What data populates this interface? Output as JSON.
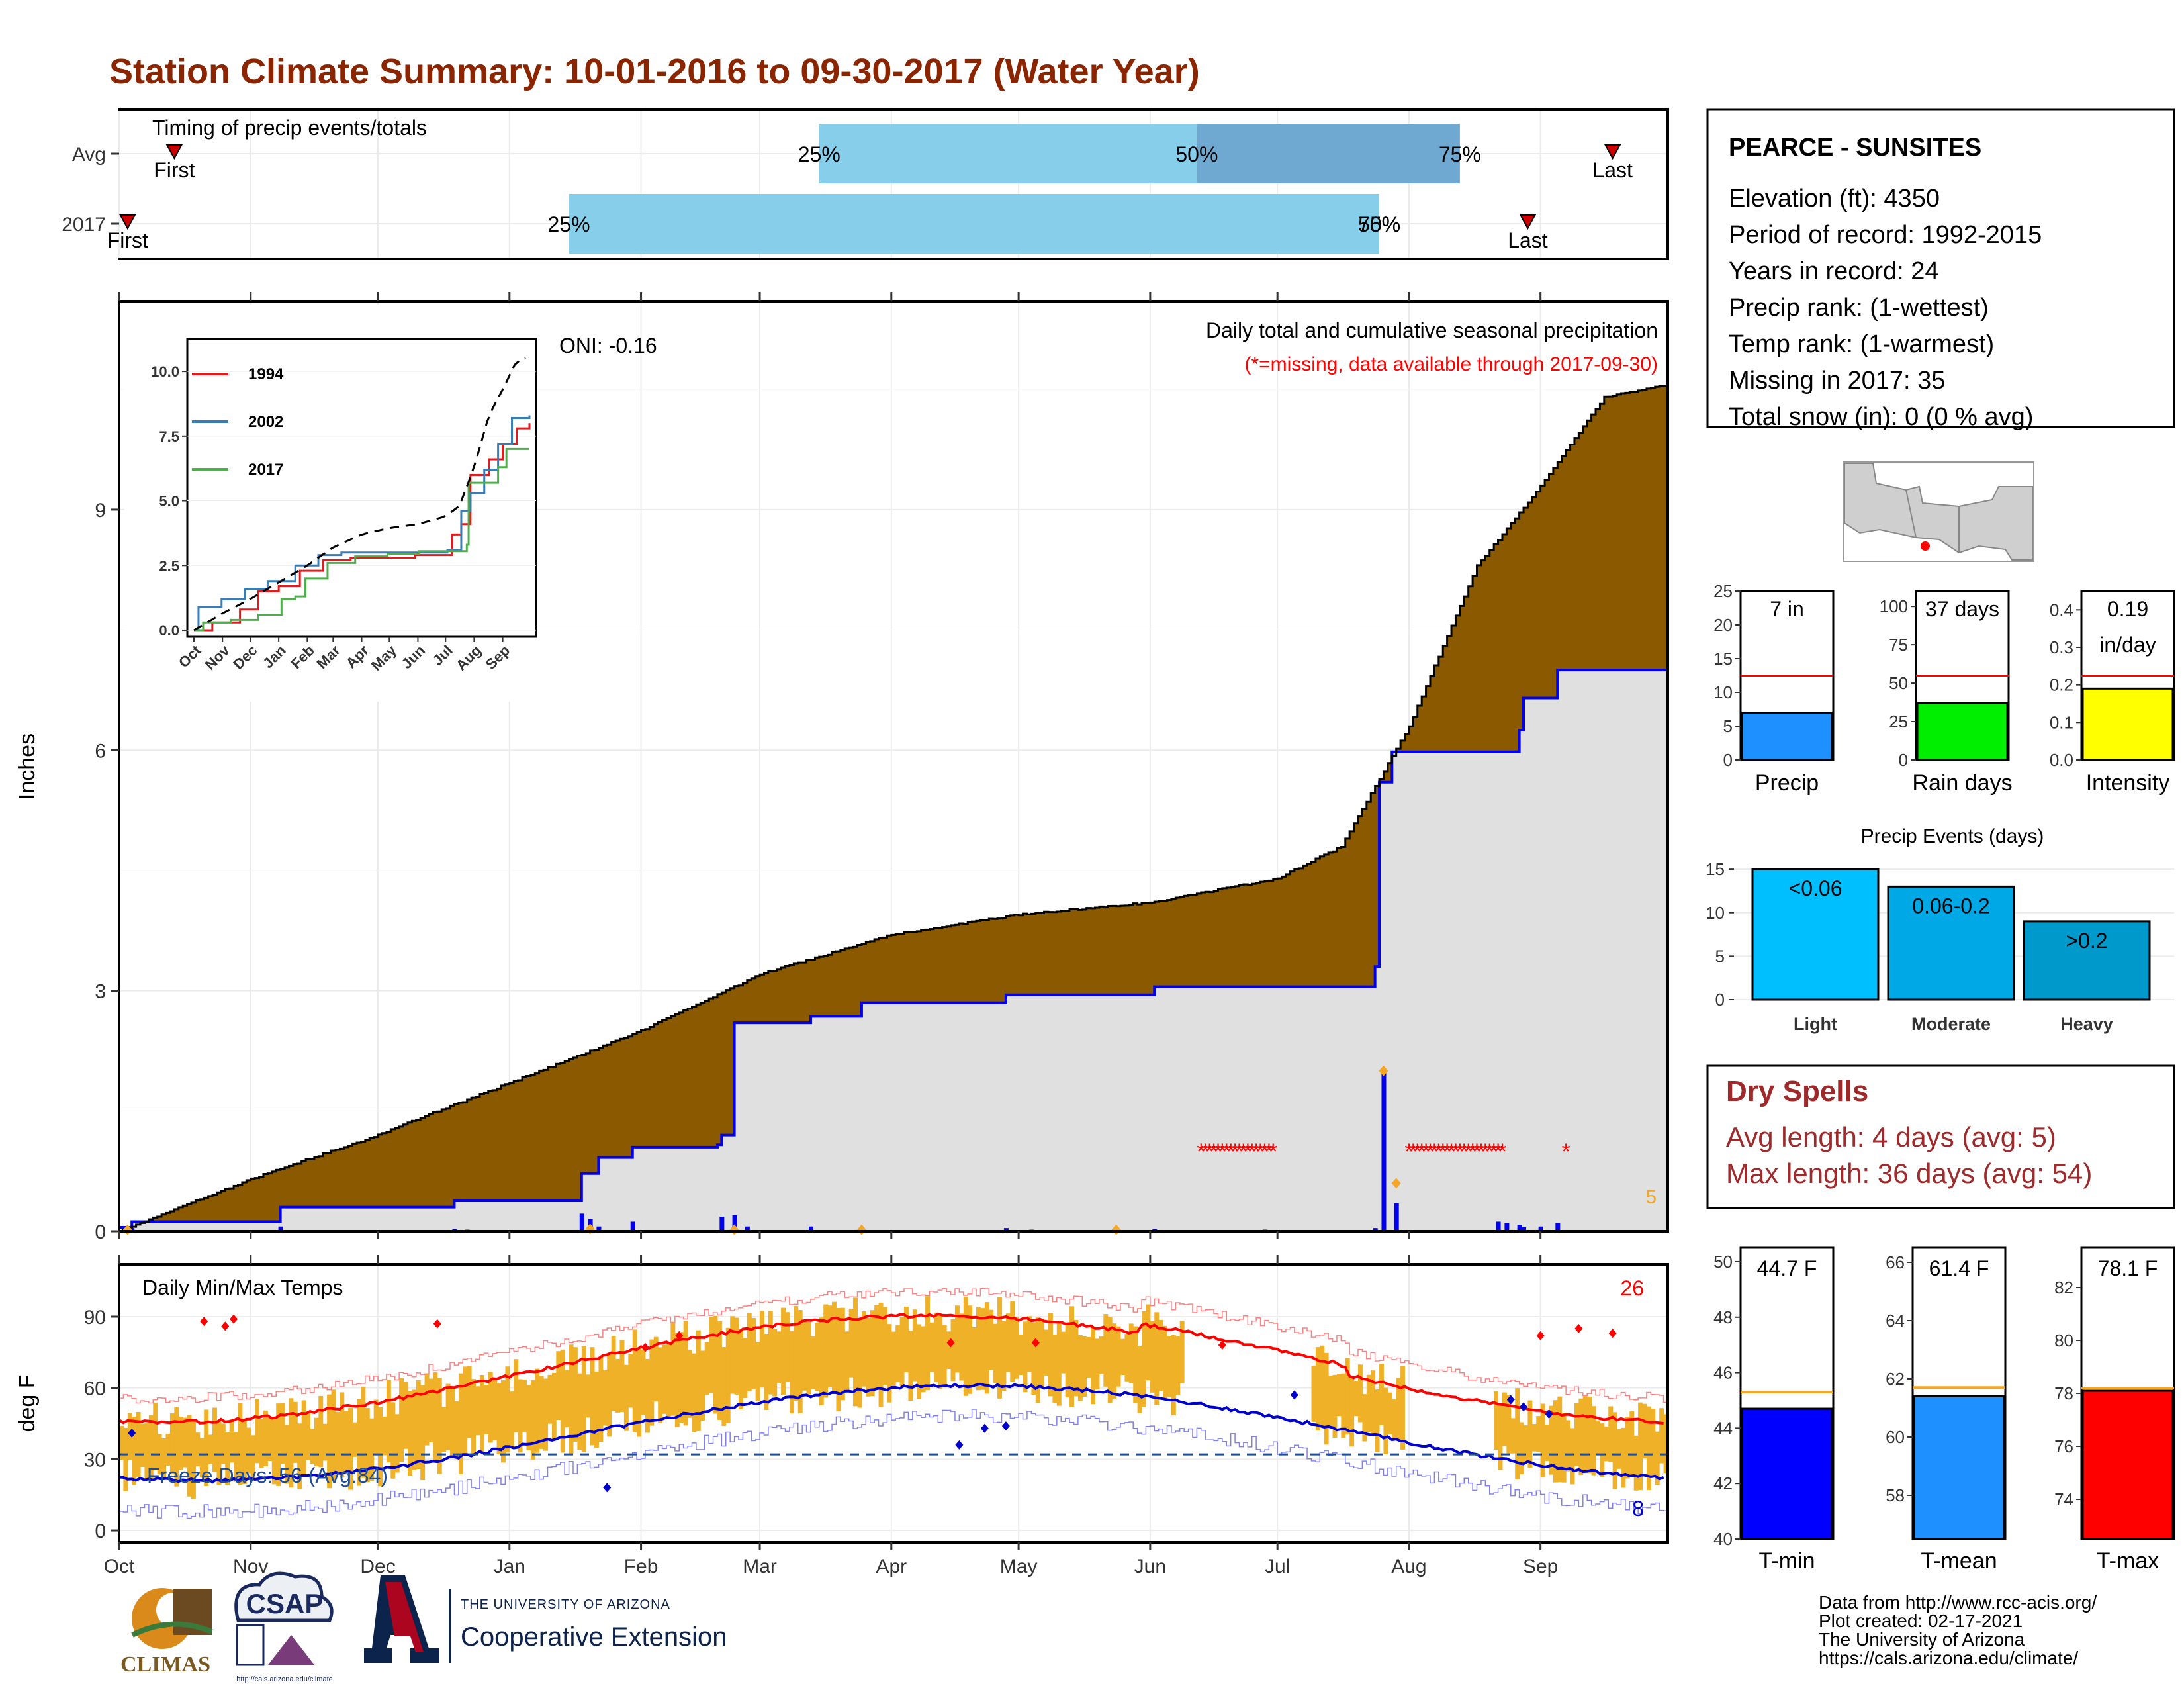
{
  "title": "Station Climate Summary: 10-01-2016 to 09-30-2017 (Water Year)",
  "colors": {
    "title": "#8B2500",
    "cumulative_avg_fill": "#8B5A00",
    "observed_fill": "#e0e0e0",
    "observed_line": "#0000ee",
    "precip_bar": "#0000ee",
    "temp_bar": "#efb127",
    "tmax_line": "#ff0000",
    "tmin_line": "#0000cc",
    "freeze_line": "#1f4e99",
    "bar_precip": "#1e90ff",
    "bar_raindays": "#00ee00",
    "bar_intensity": "#ffff00",
    "avg_line": "#ff0000",
    "tmin_bar": "#0000ff",
    "tmean_bar": "#1e90ff",
    "tmax_bar": "#ff0000",
    "temp_avg_line": "#f5a623",
    "event_light": "#00bfff",
    "event_moderate": "#00a8e6",
    "event_heavy": "#0099cc",
    "dry_spell": "#9e2a2b"
  },
  "timing": {
    "label": "Timing of precip events/totals",
    "rows": [
      {
        "name": "Avg",
        "first_label": "First",
        "last_label": "Last",
        "p25_label": "25%",
        "p50_label": "50%",
        "p75_label": "75%",
        "first_day": 13,
        "last_day": 352,
        "p25_day": 165,
        "p50_day": 254,
        "p75_day": 316
      },
      {
        "name": "2017",
        "first_label": "First",
        "last_label": "Last",
        "p25_label": "25%",
        "p50_label": "50%",
        "p75_label": "75%",
        "first_day": 2,
        "last_day": 332,
        "p25_day": 106,
        "p50_day": 297,
        "p75_day": 297
      }
    ]
  },
  "precip_panel": {
    "ylabel": "Inches",
    "yticks": [
      "0",
      "3",
      "6",
      "9"
    ],
    "ymax": 11.6,
    "caption": "Daily total and cumulative seasonal precipitation",
    "missing_note": "(*=missing, data available through 2017-09-30)",
    "oni": "ONI: -0.16",
    "corner_value": "5",
    "peak_value": "2.0"
  },
  "inset": {
    "yticks": [
      "0.0",
      "2.5",
      "5.0",
      "7.5",
      "10.0"
    ],
    "xticks": [
      "Oct",
      "Nov",
      "Dec",
      "Jan",
      "Feb",
      "Mar",
      "Apr",
      "May",
      "Jun",
      "Jul",
      "Aug",
      "Sep"
    ],
    "legend": [
      {
        "name": "1994",
        "color": "#e41a1c"
      },
      {
        "name": "2002",
        "color": "#377eb8"
      },
      {
        "name": "2017",
        "color": "#4daf4a"
      }
    ]
  },
  "temp_panel": {
    "ylabel": "deg F",
    "label": "Daily Min/Max Temps",
    "yticks": [
      "0",
      "30",
      "60",
      "90"
    ],
    "freeze_label": "Freeze Days: 56 (Avg:84)",
    "tmax_record_count": "26",
    "tmin_record_count": "8"
  },
  "months": [
    "Oct",
    "Nov",
    "Dec",
    "Jan",
    "Feb",
    "Mar",
    "Apr",
    "May",
    "Jun",
    "Jul",
    "Aug",
    "Sep"
  ],
  "station": {
    "name": "PEARCE - SUNSITES",
    "elevation": "Elevation (ft): 4350",
    "period": "Period of record: 1992-2015",
    "years": "Years in record: 24",
    "precip_rank": "Precip rank:  (1-wettest)",
    "temp_rank": "Temp rank:  (1-warmest)",
    "missing": "Missing in 2017: 35",
    "snow": "Total snow (in): 0 (0 % avg)"
  },
  "summary_bars": [
    {
      "key": "precip",
      "label": "Precip",
      "value_text": "7 in",
      "value_text2": "",
      "value": 7,
      "avg": 12.5,
      "ymax": 25,
      "yticks": [
        "0",
        "5",
        "10",
        "15",
        "20",
        "25"
      ]
    },
    {
      "key": "raindays",
      "label": "Rain days",
      "value_text": "37 days",
      "value_text2": "",
      "value": 37,
      "avg": 55,
      "ymax": 110,
      "yticks": [
        "0",
        "25",
        "50",
        "75",
        "100"
      ]
    },
    {
      "key": "intensity",
      "label": "Intensity",
      "value_text": "0.19",
      "value_text2": "in/day",
      "value": 0.19,
      "avg": 0.225,
      "ymax": 0.45,
      "yticks": [
        "0.0",
        "0.1",
        "0.2",
        "0.3",
        "0.4"
      ]
    }
  ],
  "precip_events": {
    "title": "Precip Events (days)",
    "yticks": [
      "0",
      "5",
      "10",
      "15"
    ],
    "ymax": 16,
    "bars": [
      {
        "name": "Light",
        "label": "<0.06",
        "value": 15
      },
      {
        "name": "Moderate",
        "label": "0.06-0.2",
        "value": 13
      },
      {
        "name": "Heavy",
        "label": ">0.2",
        "value": 9
      }
    ]
  },
  "dry_spells": {
    "title": "Dry Spells",
    "avg_length": "Avg length: 4 days (avg: 5)",
    "max_length": "Max length: 36 days (avg: 54)"
  },
  "temp_bars": [
    {
      "label": "T-min",
      "value_text": "44.7 F",
      "value": 44.7,
      "avg": 45.3,
      "ymin": 40,
      "ymax": 50.5,
      "yticks": [
        "40",
        "42",
        "44",
        "46",
        "48",
        "50"
      ]
    },
    {
      "label": "T-mean",
      "value_text": "61.4 F",
      "value": 61.4,
      "avg": 61.7,
      "ymin": 56.5,
      "ymax": 66.5,
      "yticks": [
        "58",
        "60",
        "62",
        "64",
        "66"
      ]
    },
    {
      "label": "T-max",
      "value_text": "78.1 F",
      "value": 78.1,
      "avg": 78.2,
      "ymin": 72.5,
      "ymax": 83.5,
      "yticks": [
        "74",
        "76",
        "78",
        "80",
        "82"
      ]
    }
  ],
  "logos": {
    "climas": "CLIMAS",
    "csap": "CSAP",
    "csap_url": "http://cals.arizona.edu/climate",
    "ua_small": "THE UNIVERSITY OF ARIZONA",
    "ua_big": "Cooperative Extension"
  },
  "credits": [
    "Data from http://www.rcc-acis.org/",
    "Plot created: 02-17-2021",
    "The University of Arizona",
    "https://cals.arizona.edu/climate/"
  ]
}
